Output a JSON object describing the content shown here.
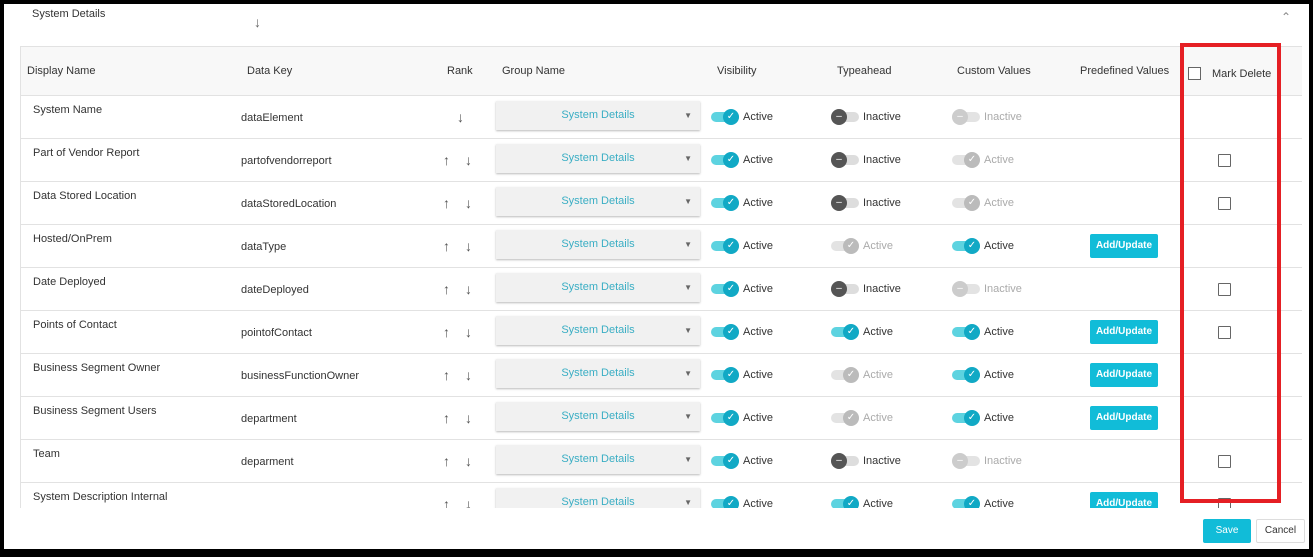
{
  "section": {
    "title": "System Details",
    "collapse_icon": "chevron-up"
  },
  "headers": {
    "display_name": "Display Name",
    "data_key": "Data Key",
    "rank": "Rank",
    "group_name": "Group Name",
    "visibility": "Visibility",
    "typeahead": "Typeahead",
    "custom_values": "Custom Values",
    "predefined_values": "Predefined Values",
    "mark_delete": "Mark Delete"
  },
  "colors": {
    "accent": "#11bcd8",
    "highlight": "#e51f24"
  },
  "rows": [
    {
      "name": "System Name",
      "key": "dataElement",
      "rank": [
        "down"
      ],
      "group": "System Details",
      "visibility": {
        "state": "on",
        "label": "Active"
      },
      "typeahead": {
        "state": "off",
        "label": "Inactive"
      },
      "custom": {
        "state": "doff",
        "label": "Inactive"
      },
      "predefined": "",
      "delete_checkbox": false
    },
    {
      "name": "Part of Vendor Report",
      "key": "partofvendorreport",
      "rank": [
        "up",
        "down"
      ],
      "group": "System Details",
      "visibility": {
        "state": "on",
        "label": "Active"
      },
      "typeahead": {
        "state": "off",
        "label": "Inactive"
      },
      "custom": {
        "state": "don",
        "label": "Active"
      },
      "predefined": "",
      "delete_checkbox": true
    },
    {
      "name": "Data Stored Location",
      "key": "dataStoredLocation",
      "rank": [
        "up",
        "down"
      ],
      "group": "System Details",
      "visibility": {
        "state": "on",
        "label": "Active"
      },
      "typeahead": {
        "state": "off",
        "label": "Inactive"
      },
      "custom": {
        "state": "don",
        "label": "Active"
      },
      "predefined": "",
      "delete_checkbox": true
    },
    {
      "name": "Hosted/OnPrem",
      "key": "dataType",
      "rank": [
        "up",
        "down"
      ],
      "group": "System Details",
      "visibility": {
        "state": "on",
        "label": "Active"
      },
      "typeahead": {
        "state": "don",
        "label": "Active"
      },
      "custom": {
        "state": "on",
        "label": "Active"
      },
      "predefined": "Add/Update",
      "delete_checkbox": false
    },
    {
      "name": "Date Deployed",
      "key": "dateDeployed",
      "rank": [
        "up",
        "down"
      ],
      "group": "System Details",
      "visibility": {
        "state": "on",
        "label": "Active"
      },
      "typeahead": {
        "state": "off",
        "label": "Inactive"
      },
      "custom": {
        "state": "doff",
        "label": "Inactive"
      },
      "predefined": "",
      "delete_checkbox": true
    },
    {
      "name": "Points of Contact",
      "key": "pointofContact",
      "rank": [
        "up",
        "down"
      ],
      "group": "System Details",
      "visibility": {
        "state": "on",
        "label": "Active"
      },
      "typeahead": {
        "state": "on",
        "label": "Active"
      },
      "custom": {
        "state": "on",
        "label": "Active"
      },
      "predefined": "Add/Update",
      "delete_checkbox": true
    },
    {
      "name": "Business Segment Owner",
      "key": "businessFunctionOwner",
      "rank": [
        "up",
        "down"
      ],
      "group": "System Details",
      "visibility": {
        "state": "on",
        "label": "Active"
      },
      "typeahead": {
        "state": "don",
        "label": "Active"
      },
      "custom": {
        "state": "on",
        "label": "Active"
      },
      "predefined": "Add/Update",
      "delete_checkbox": false
    },
    {
      "name": "Business Segment Users",
      "key": "department",
      "rank": [
        "up",
        "down"
      ],
      "group": "System Details",
      "visibility": {
        "state": "on",
        "label": "Active"
      },
      "typeahead": {
        "state": "don",
        "label": "Active"
      },
      "custom": {
        "state": "on",
        "label": "Active"
      },
      "predefined": "Add/Update",
      "delete_checkbox": false
    },
    {
      "name": "Team",
      "key": "deparment",
      "rank": [
        "up",
        "down"
      ],
      "group": "System Details",
      "visibility": {
        "state": "on",
        "label": "Active"
      },
      "typeahead": {
        "state": "off",
        "label": "Inactive"
      },
      "custom": {
        "state": "doff",
        "label": "Inactive"
      },
      "predefined": "",
      "delete_checkbox": true
    },
    {
      "name": "System Description Internal",
      "key": "",
      "rank": [
        "up",
        "down"
      ],
      "group": "System Details",
      "visibility": {
        "state": "on",
        "label": "Active"
      },
      "typeahead": {
        "state": "on",
        "label": "Active"
      },
      "custom": {
        "state": "on",
        "label": "Active"
      },
      "predefined": "Add/Update",
      "delete_checkbox": true
    }
  ],
  "footer": {
    "save": "Save",
    "cancel": "Cancel"
  }
}
